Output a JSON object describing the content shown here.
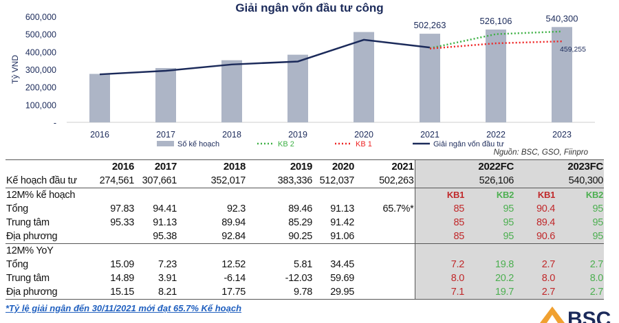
{
  "chart_data": {
    "type": "bar+line",
    "title": "Giải ngân vốn đầu tư công",
    "ylabel": "Tỷ VND",
    "ylim": [
      0,
      600000
    ],
    "yticks": [
      "-",
      "100,000",
      "200,000",
      "300,000",
      "400,000",
      "500,000",
      "600,000"
    ],
    "categories": [
      "2016",
      "2017",
      "2018",
      "2019",
      "2020",
      "2021",
      "2022",
      "2023"
    ],
    "bars": {
      "name": "Số kế hoạch",
      "color": "#adb5c6",
      "values": [
        274561,
        307661,
        352017,
        383336,
        512037,
        502263,
        526106,
        540300
      ]
    },
    "bar_labels": [
      {
        "index": 5,
        "text": "502,263"
      },
      {
        "index": 6,
        "text": "526,106"
      },
      {
        "index": 7,
        "text": "540,300"
      }
    ],
    "series": [
      {
        "name": "Giải ngân vốn đầu tư",
        "color": "#1b2a5a",
        "style": "solid",
        "x": [
          "2016",
          "2017",
          "2018",
          "2019",
          "2020",
          "2021"
        ],
        "values": [
          272000,
          292000,
          328000,
          345000,
          468000,
          424000
        ]
      },
      {
        "name": "KB 2",
        "color": "#3cb043",
        "style": "dotted",
        "x": [
          "2021",
          "2022",
          "2023"
        ],
        "values": [
          420000,
          500000,
          515000
        ]
      },
      {
        "name": "KB 1",
        "color": "#ee2222",
        "style": "dotted",
        "x": [
          "2021",
          "2022",
          "2023"
        ],
        "values": [
          418000,
          448000,
          459255
        ]
      }
    ],
    "annotations": [
      {
        "text": "459,255"
      }
    ],
    "legend": "bottom",
    "grid": false
  },
  "source": "Nguồn: BSC, GSO, Fiinpro",
  "table": {
    "header": [
      "",
      "2016",
      "2017",
      "2018",
      "2019",
      "2020",
      "2021",
      "",
      "2022FC",
      "",
      "2023FC"
    ],
    "plan": [
      "Kế hoạch đầu tư",
      "274,561",
      "307,661",
      "352,017",
      "383,336",
      "512,037",
      "502,263",
      "",
      "526,106",
      "",
      "540,300"
    ],
    "sec1": [
      "12M% kế hoạch",
      "",
      "",
      "",
      "",
      "",
      "",
      "KB1",
      "KB2",
      "KB1",
      "KB2"
    ],
    "rows1": [
      [
        "Tổng",
        "97.83",
        "94.41",
        "92.3",
        "89.46",
        "91.13",
        "65.7%*",
        "85",
        "95",
        "90.4",
        "95"
      ],
      [
        "Trung tâm",
        "95.33",
        "91.13",
        "89.94",
        "85.29",
        "91.42",
        "",
        "85",
        "95",
        "89.4",
        "95"
      ],
      [
        "Địa phương",
        "",
        "95.38",
        "92.84",
        "90.25",
        "91.06",
        "",
        "85",
        "95",
        "90.6",
        "95"
      ]
    ],
    "sec2": [
      "12M% YoY",
      "",
      "",
      "",
      "",
      "",
      "",
      "",
      "",
      "",
      ""
    ],
    "rows2": [
      [
        "Tổng",
        "15.09",
        "7.23",
        "12.52",
        "5.81",
        "34.45",
        "",
        "7.2",
        "19.8",
        "2.7",
        "2.7"
      ],
      [
        "Trung tâm",
        "14.89",
        "3.91",
        "-6.14",
        "-12.03",
        "59.69",
        "",
        "8.0",
        "20.2",
        "8.0",
        "8.0"
      ],
      [
        "Địa phương",
        "15.15",
        "8.21",
        "17.75",
        "9.78",
        "29.95",
        "",
        "7.1",
        "19.7",
        "2.7",
        "2.7"
      ]
    ]
  },
  "note": "*Tỷ lệ giải ngân đến 30/11/2021 mới đạt 65.7% Kế hoạch",
  "logo": "BSC"
}
